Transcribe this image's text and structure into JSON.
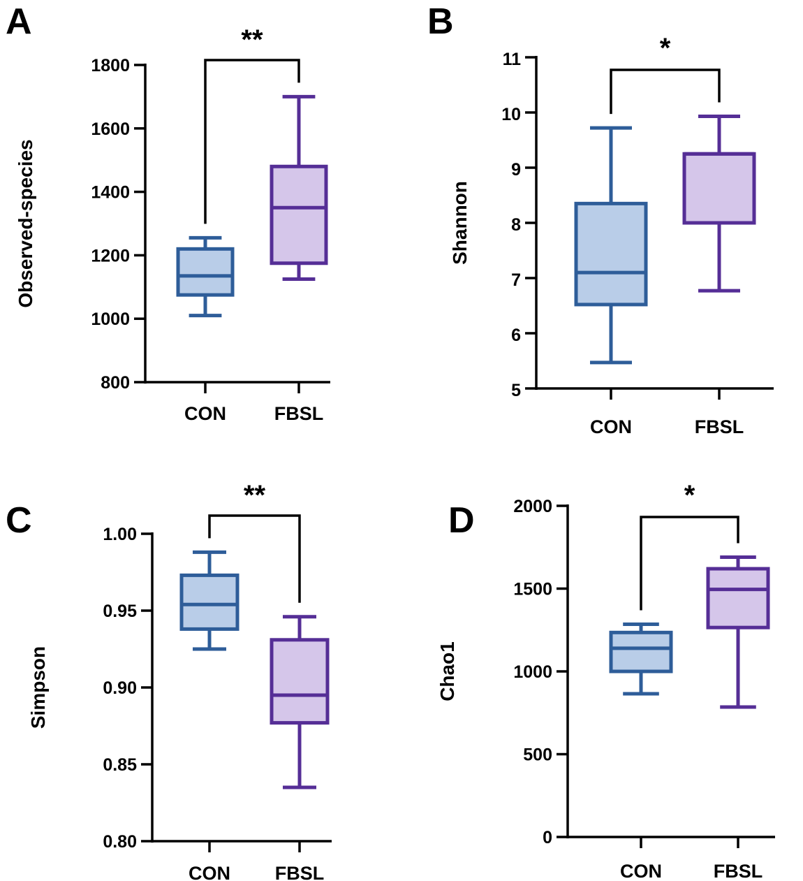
{
  "figure": {
    "background": "#ffffff"
  },
  "colors": {
    "con_stroke": "#2e5d99",
    "con_fill": "#b9cde8",
    "fbsl_stroke": "#552e96",
    "fbsl_fill": "#d5c6ea",
    "axis": "#000000"
  },
  "chart_data": [
    {
      "panel": "A",
      "type": "box",
      "ylabel": "Observed-species",
      "ylim": [
        800,
        1800
      ],
      "yticks": [
        800,
        1000,
        1200,
        1400,
        1600,
        1800
      ],
      "tick_labels": [
        "800",
        "1000",
        "1200",
        "1400",
        "1600",
        "1800"
      ],
      "categories": [
        "CON",
        "FBSL"
      ],
      "boxes": [
        {
          "name": "CON",
          "min": 1010,
          "q1": 1075,
          "median": 1135,
          "q3": 1220,
          "max": 1255
        },
        {
          "name": "FBSL",
          "min": 1125,
          "q1": 1175,
          "median": 1350,
          "q3": 1480,
          "max": 1700
        }
      ],
      "significance": "**"
    },
    {
      "panel": "B",
      "type": "box",
      "ylabel": "Shannon",
      "ylim": [
        5,
        11
      ],
      "yticks": [
        5,
        6,
        7,
        8,
        9,
        10,
        11
      ],
      "tick_labels": [
        "5",
        "6",
        "7",
        "8",
        "9",
        "10",
        "11"
      ],
      "categories": [
        "CON",
        "FBSL"
      ],
      "boxes": [
        {
          "name": "CON",
          "min": 5.47,
          "q1": 6.52,
          "median": 7.1,
          "q3": 8.35,
          "max": 9.72
        },
        {
          "name": "FBSL",
          "min": 6.77,
          "q1": 8.0,
          "median": 9.25,
          "q3": 9.25,
          "max": 9.93
        }
      ],
      "significance": "*"
    },
    {
      "panel": "C",
      "type": "box",
      "ylabel": "Simpson",
      "ylim": [
        0.8,
        1.0
      ],
      "yticks": [
        0.8,
        0.85,
        0.9,
        0.95,
        1.0
      ],
      "tick_labels": [
        "0.80",
        "0.85",
        "0.90",
        "0.95",
        "1.00"
      ],
      "categories": [
        "CON",
        "FBSL"
      ],
      "boxes": [
        {
          "name": "CON",
          "min": 0.925,
          "q1": 0.938,
          "median": 0.954,
          "q3": 0.973,
          "max": 0.988
        },
        {
          "name": "FBSL",
          "min": 0.835,
          "q1": 0.877,
          "median": 0.895,
          "q3": 0.931,
          "max": 0.946
        }
      ],
      "significance": "**"
    },
    {
      "panel": "D",
      "type": "box",
      "ylabel": "Chao1",
      "ylim": [
        0,
        2000
      ],
      "yticks": [
        0,
        500,
        1000,
        1500,
        2000
      ],
      "tick_labels": [
        "0",
        "500",
        "1000",
        "1500",
        "2000"
      ],
      "categories": [
        "CON",
        "FBSL"
      ],
      "boxes": [
        {
          "name": "CON",
          "min": 865,
          "q1": 1000,
          "median": 1140,
          "q3": 1235,
          "max": 1285
        },
        {
          "name": "FBSL",
          "min": 785,
          "q1": 1265,
          "median": 1495,
          "q3": 1620,
          "max": 1690
        }
      ],
      "significance": "*"
    }
  ]
}
